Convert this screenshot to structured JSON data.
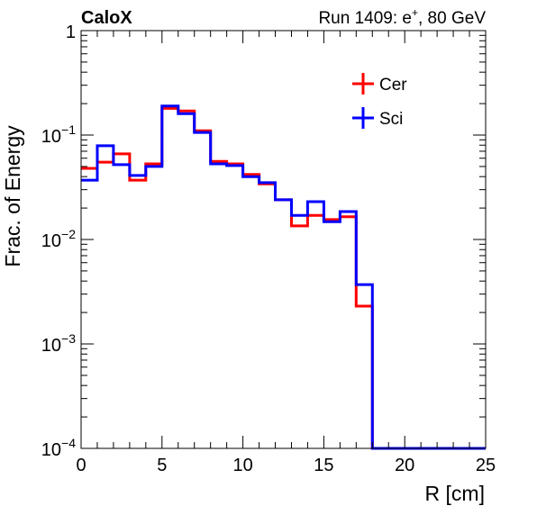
{
  "header": {
    "experiment": "CaloX",
    "run_label": "Run 1409: e",
    "run_sup": "+",
    "run_energy": ", 80 GeV"
  },
  "chart_data": {
    "type": "line",
    "style": "step-histogram",
    "xlabel": "R [cm]",
    "ylabel": "Frac. of Energy",
    "xlim": [
      0,
      25
    ],
    "ylim": [
      0.0001,
      1
    ],
    "yscale": "log",
    "grid": false,
    "legend_position": "top-right",
    "x_tick_labels": [
      "0",
      "5",
      "10",
      "15",
      "20",
      "25"
    ],
    "x_ticks": [
      0,
      5,
      10,
      15,
      20,
      25
    ],
    "y_ticks": [
      {
        "value": 1,
        "base": "1",
        "exp": ""
      },
      {
        "value": 0.1,
        "base": "10",
        "exp": "−1"
      },
      {
        "value": 0.01,
        "base": "10",
        "exp": "−2"
      },
      {
        "value": 0.001,
        "base": "10",
        "exp": "−3"
      },
      {
        "value": 0.0001,
        "base": "10",
        "exp": "−4"
      }
    ],
    "bin_edges": [
      0,
      1,
      2,
      3,
      4,
      5,
      6,
      7,
      8,
      9,
      10,
      11,
      12,
      13,
      14,
      15,
      16,
      17,
      18,
      19,
      20,
      21,
      22,
      23,
      24,
      25
    ],
    "series": [
      {
        "name": "Cer",
        "color": "#ff0000",
        "values": [
          0.048,
          0.055,
          0.066,
          0.037,
          0.053,
          0.18,
          0.17,
          0.11,
          0.056,
          0.053,
          0.042,
          0.034,
          0.024,
          0.0135,
          0.017,
          0.0155,
          0.0165,
          0.0023,
          0.0001,
          0.0001,
          0.0001,
          0.0001,
          0.0001,
          0.0001,
          0.0001
        ]
      },
      {
        "name": "Sci",
        "color": "#0000ff",
        "values": [
          0.037,
          0.079,
          0.052,
          0.041,
          0.05,
          0.19,
          0.16,
          0.106,
          0.053,
          0.051,
          0.04,
          0.035,
          0.024,
          0.017,
          0.023,
          0.0148,
          0.0185,
          0.0037,
          0.0001,
          0.0001,
          0.0001,
          0.0001,
          0.0001,
          0.0001,
          0.0001
        ]
      }
    ]
  }
}
